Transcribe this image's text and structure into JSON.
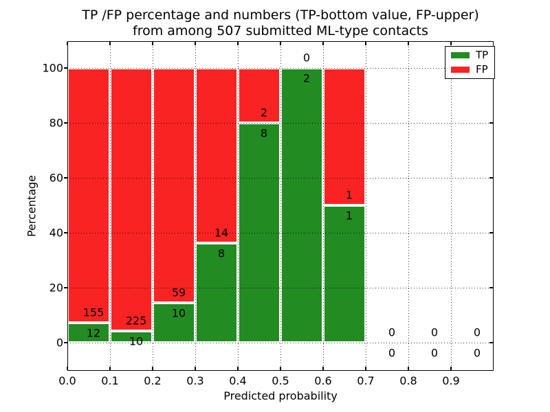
{
  "figure": {
    "title_line1": "TP /FP percentage and numbers (TP-bottom value, FP-upper)",
    "title_line2": "from among 507 submitted ML-type contacts"
  },
  "chart_data": {
    "type": "bar",
    "variant": "stacked-percentage",
    "title": "TP /FP percentage and numbers (TP-bottom value, FP-upper) from among 507 submitted ML-type contacts",
    "xlabel": "Predicted probability",
    "ylabel": "Percentage",
    "total_submitted": 507,
    "xlim": [
      0.0,
      1.0
    ],
    "ylim": [
      -10,
      110
    ],
    "x_tick_labels": [
      "0.0",
      "0.1",
      "0.2",
      "0.3",
      "0.4",
      "0.5",
      "0.6",
      "0.7",
      "0.8",
      "0.9"
    ],
    "y_tick_values": [
      0,
      20,
      40,
      60,
      80,
      100
    ],
    "grid": "dotted, both axes, drawn above bars",
    "legend_position": "upper-right",
    "categories": [
      "0.0-0.1",
      "0.1-0.2",
      "0.2-0.3",
      "0.3-0.4",
      "0.4-0.5",
      "0.5-0.6",
      "0.6-0.7",
      "0.7-0.8",
      "0.8-0.9",
      "0.9-1.0"
    ],
    "series": [
      {
        "name": "TP",
        "color": "#228b22",
        "counts": [
          12,
          10,
          10,
          8,
          8,
          2,
          1,
          0,
          0,
          0
        ]
      },
      {
        "name": "FP",
        "color": "#fa2323",
        "counts": [
          155,
          225,
          59,
          14,
          2,
          0,
          1,
          0,
          0,
          0
        ]
      }
    ],
    "tp_percent_by_bin": [
      7.19,
      4.26,
      14.49,
      36.36,
      80.0,
      100.0,
      50.0,
      null,
      null,
      null
    ]
  }
}
